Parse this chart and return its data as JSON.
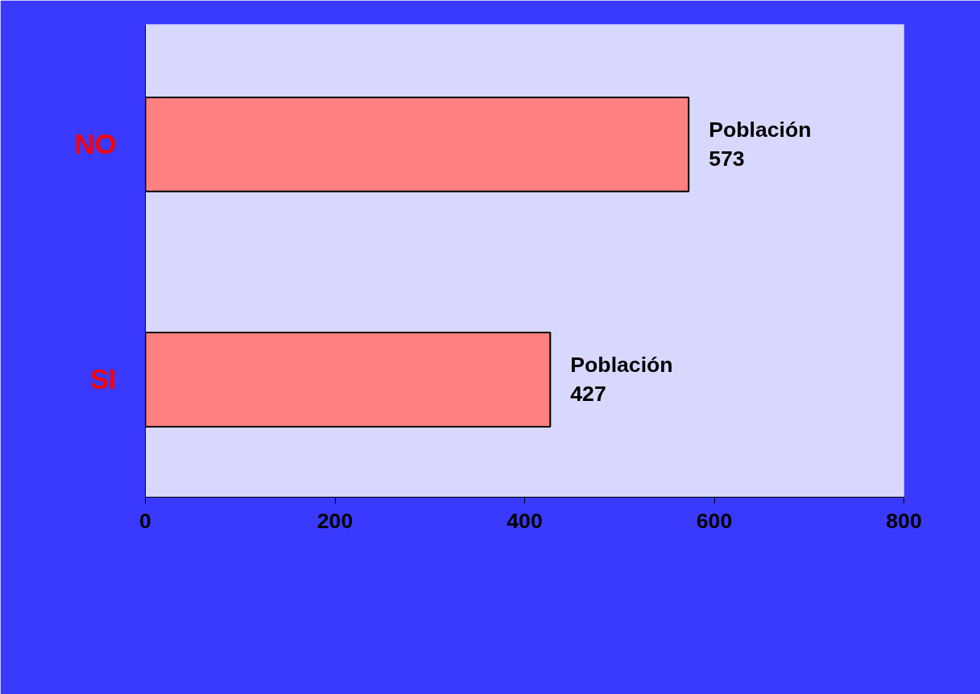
{
  "chart_data": {
    "type": "bar",
    "orientation": "horizontal",
    "categories": [
      "NO",
      "SI"
    ],
    "series": [
      {
        "color": "#ff8080",
        "values": [
          573,
          427
        ],
        "value_labels": [
          "Población\n573",
          "Población\n427"
        ]
      }
    ],
    "xlim": [
      0,
      800
    ],
    "xticks": [
      0,
      200,
      400,
      600,
      800
    ],
    "grid": false
  }
}
